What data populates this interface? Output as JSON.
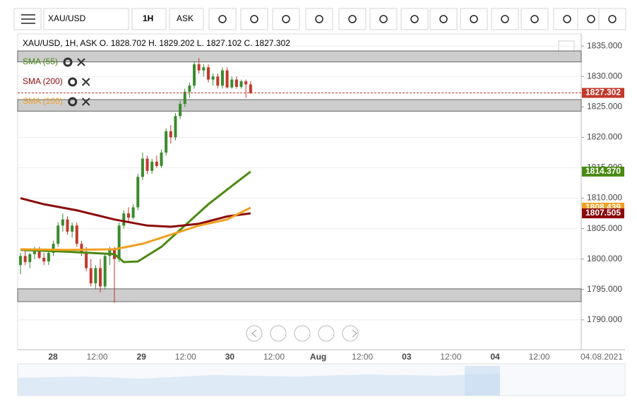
{
  "toolbar": {
    "symbol": "XAU/USD",
    "interval": "1H",
    "side": "ASK"
  },
  "header": "XAU/USD, 1H, ASK   O. 1828.702 H. 1829.202 L. 1827.102 C. 1827.302",
  "chart_data": {
    "type": "candlestick",
    "ylim": [
      1785.1,
      1837
    ],
    "yticks": [
      {
        "value": 1835,
        "label": "1835.000"
      },
      {
        "value": 1830,
        "label": "1830.000"
      },
      {
        "value": 1825,
        "label": "1825.000"
      },
      {
        "value": 1820,
        "label": "1820.000"
      },
      {
        "value": 1815,
        "label": "1815.000"
      },
      {
        "value": 1810,
        "label": "1810.000"
      },
      {
        "value": 1805,
        "label": "1805.000"
      },
      {
        "value": 1800,
        "label": "1800.000"
      },
      {
        "value": 1795,
        "label": "1795.000"
      },
      {
        "value": 1790,
        "label": "1790.000"
      }
    ],
    "xlabels": [
      "28",
      "12:00",
      "29",
      "12:00",
      "30",
      "12:00",
      "Aug",
      "12:00",
      "03",
      "12:00",
      "04",
      "12:00"
    ],
    "date_label": "04.08.2021",
    "up_color": "#3b8a2e",
    "down_color": "#c0392b",
    "candles": [
      [
        1799,
        1801,
        1797.5,
        1800.5
      ],
      [
        1800.5,
        1801.5,
        1799,
        1799.5
      ],
      [
        1799.5,
        1801,
        1798.5,
        1800.8
      ],
      [
        1800.8,
        1802,
        1800,
        1801.5
      ],
      [
        1801.5,
        1802,
        1800,
        1800.2
      ],
      [
        1800.2,
        1801,
        1799,
        1799.6
      ],
      [
        1799.6,
        1801.5,
        1799,
        1801
      ],
      [
        1801,
        1803,
        1800.5,
        1802.5
      ],
      [
        1802.5,
        1806,
        1802,
        1805.5
      ],
      [
        1805.5,
        1807.5,
        1804.5,
        1806.5
      ],
      [
        1806.5,
        1807,
        1804,
        1804.5
      ],
      [
        1804.5,
        1806,
        1803.5,
        1805.5
      ],
      [
        1805.5,
        1806,
        1802,
        1802.5
      ],
      [
        1802.5,
        1803,
        1800.5,
        1801
      ],
      [
        1801,
        1802,
        1798,
        1798.5
      ],
      [
        1798.5,
        1800,
        1795.5,
        1796
      ],
      [
        1796,
        1799,
        1795,
        1798.5
      ],
      [
        1798.5,
        1800,
        1794.5,
        1795.5
      ],
      [
        1795.5,
        1801,
        1795,
        1800.5
      ],
      [
        1800.5,
        1802,
        1799,
        1801.5
      ],
      [
        1801.5,
        1802,
        1792.8,
        1800
      ],
      [
        1800,
        1806,
        1799.5,
        1805.5
      ],
      [
        1805.5,
        1808,
        1805,
        1807.5
      ],
      [
        1807.5,
        1808.5,
        1806,
        1806.8
      ],
      [
        1806.8,
        1809,
        1806.5,
        1808.5
      ],
      [
        1808.5,
        1814,
        1808,
        1813.5
      ],
      [
        1813.5,
        1817.5,
        1813,
        1816.5
      ],
      [
        1816.5,
        1817,
        1814,
        1814.5
      ],
      [
        1814.5,
        1816.5,
        1814,
        1816
      ],
      [
        1816,
        1817,
        1815,
        1815.3
      ],
      [
        1815.3,
        1818,
        1815,
        1817.5
      ],
      [
        1817.5,
        1821.5,
        1817,
        1821
      ],
      [
        1821,
        1822,
        1819,
        1820
      ],
      [
        1820,
        1824,
        1819.5,
        1823.5
      ],
      [
        1823.5,
        1826,
        1823,
        1825.5
      ],
      [
        1825.5,
        1828,
        1825,
        1827.5
      ],
      [
        1827.5,
        1829,
        1826.5,
        1828.5
      ],
      [
        1828.5,
        1832.5,
        1828,
        1832
      ],
      [
        1832,
        1833,
        1830.5,
        1831
      ],
      [
        1831,
        1832,
        1830,
        1831.5
      ],
      [
        1831.5,
        1832,
        1829,
        1829.5
      ],
      [
        1829.5,
        1830.5,
        1828.5,
        1830
      ],
      [
        1830,
        1830.5,
        1828,
        1828.5
      ],
      [
        1828.5,
        1831.5,
        1828,
        1831
      ],
      [
        1831,
        1831.5,
        1828,
        1828.2
      ],
      [
        1828.2,
        1830,
        1828,
        1829.5
      ],
      [
        1829.5,
        1830,
        1828,
        1828.3
      ],
      [
        1828.3,
        1829.5,
        1828,
        1829.2
      ],
      [
        1829.2,
        1829.5,
        1826.5,
        1828.702
      ],
      [
        1828.702,
        1829.202,
        1827.102,
        1827.302
      ]
    ],
    "zones": [
      [
        1832.4,
        1834.2
      ],
      [
        1824.3,
        1826.2
      ],
      [
        1793,
        1795.1
      ]
    ],
    "series": [
      {
        "name": "SMA (55)",
        "color": "#4a8a12",
        "idx": [
          0,
          10,
          20,
          22,
          25,
          30,
          35,
          40,
          45,
          49
        ],
        "values": [
          1801.5,
          1801.2,
          1800.8,
          1799.5,
          1799.6,
          1802,
          1805.5,
          1809,
          1812,
          1814.37
        ]
      },
      {
        "name": "SMA (200)",
        "color": "#8b0a0a",
        "idx": [
          0,
          5,
          12,
          20,
          27,
          32,
          38,
          44,
          49
        ],
        "values": [
          1810,
          1809,
          1808,
          1806.5,
          1805.5,
          1805.3,
          1805.8,
          1807,
          1807.505
        ]
      },
      {
        "name": "SMA (100)",
        "color": "#f0a020",
        "idx": [
          0,
          10,
          20,
          26,
          32,
          38,
          44,
          49
        ],
        "values": [
          1801.6,
          1801.5,
          1801.6,
          1802.5,
          1804,
          1805.5,
          1806.5,
          1808.439
        ]
      }
    ],
    "price_labels": [
      {
        "value": 1827.302,
        "label": "1827.302",
        "color": "#c0392b"
      },
      {
        "value": 1814.37,
        "label": "1814.370",
        "color": "#4a8a12"
      },
      {
        "value": 1808.439,
        "label": "1808.439",
        "color": "#f0a020"
      },
      {
        "value": 1807.505,
        "label": "1807.505",
        "color": "#8b0a0a"
      }
    ]
  }
}
